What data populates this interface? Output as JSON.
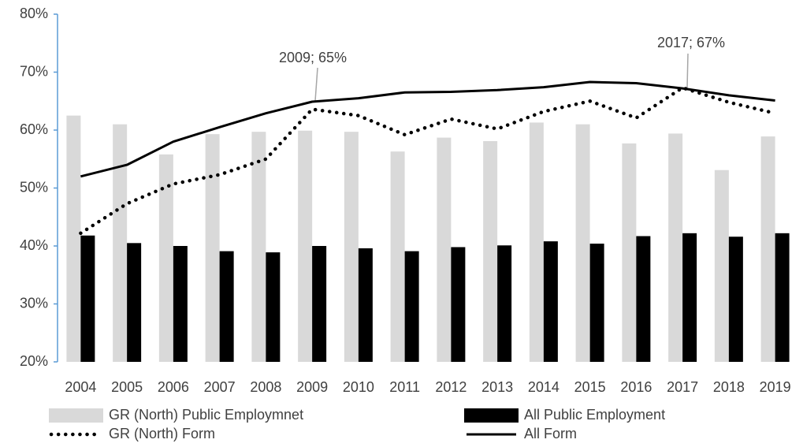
{
  "chart_data": {
    "type": "bar_line",
    "categories": [
      "2004",
      "2005",
      "2006",
      "2007",
      "2008",
      "2009",
      "2010",
      "2011",
      "2012",
      "2013",
      "2014",
      "2015",
      "2016",
      "2017",
      "2018",
      "2019"
    ],
    "series": [
      {
        "name": "GR (North) Public Employmnet",
        "type": "bar",
        "color": "#d9d9d9",
        "values": [
          62.5,
          61,
          55.8,
          59.3,
          59.7,
          59.9,
          59.7,
          56.3,
          58.7,
          58.1,
          61.3,
          61,
          57.7,
          59.4,
          53.1,
          58.9
        ]
      },
      {
        "name": "All Public Employment",
        "type": "bar",
        "color": "#000000",
        "values": [
          41.8,
          40.5,
          40,
          39.1,
          38.9,
          40,
          39.6,
          39.1,
          39.8,
          40.1,
          40.8,
          40.4,
          41.7,
          42.2,
          41.6,
          42.2
        ]
      },
      {
        "name": "GR (North) Form",
        "type": "dotted-line",
        "color": "#000000",
        "values": [
          42.2,
          47.3,
          50.7,
          52.3,
          55,
          63.6,
          62.5,
          59.2,
          61.9,
          60.2,
          63.2,
          65,
          62.1,
          67.3,
          64.8,
          62.9
        ]
      },
      {
        "name": "All Form",
        "type": "line",
        "color": "#000000",
        "values": [
          52,
          54,
          58,
          60.5,
          62.9,
          64.9,
          65.5,
          66.5,
          66.6,
          66.9,
          67.4,
          68.3,
          68.1,
          67.2,
          66,
          65.1
        ]
      }
    ],
    "annotations": [
      "2009; 65%",
      "2017; 67%"
    ],
    "ylim": [
      20,
      80
    ],
    "yticks": [
      {
        "value": 20,
        "label": "20%"
      },
      {
        "value": 30,
        "label": "30%"
      },
      {
        "value": 40,
        "label": "40%"
      },
      {
        "value": 50,
        "label": "50%"
      },
      {
        "value": 60,
        "label": "60%"
      },
      {
        "value": 70,
        "label": "70%"
      },
      {
        "value": 80,
        "label": "80%"
      }
    ],
    "grid": false,
    "legend": "bottom"
  }
}
